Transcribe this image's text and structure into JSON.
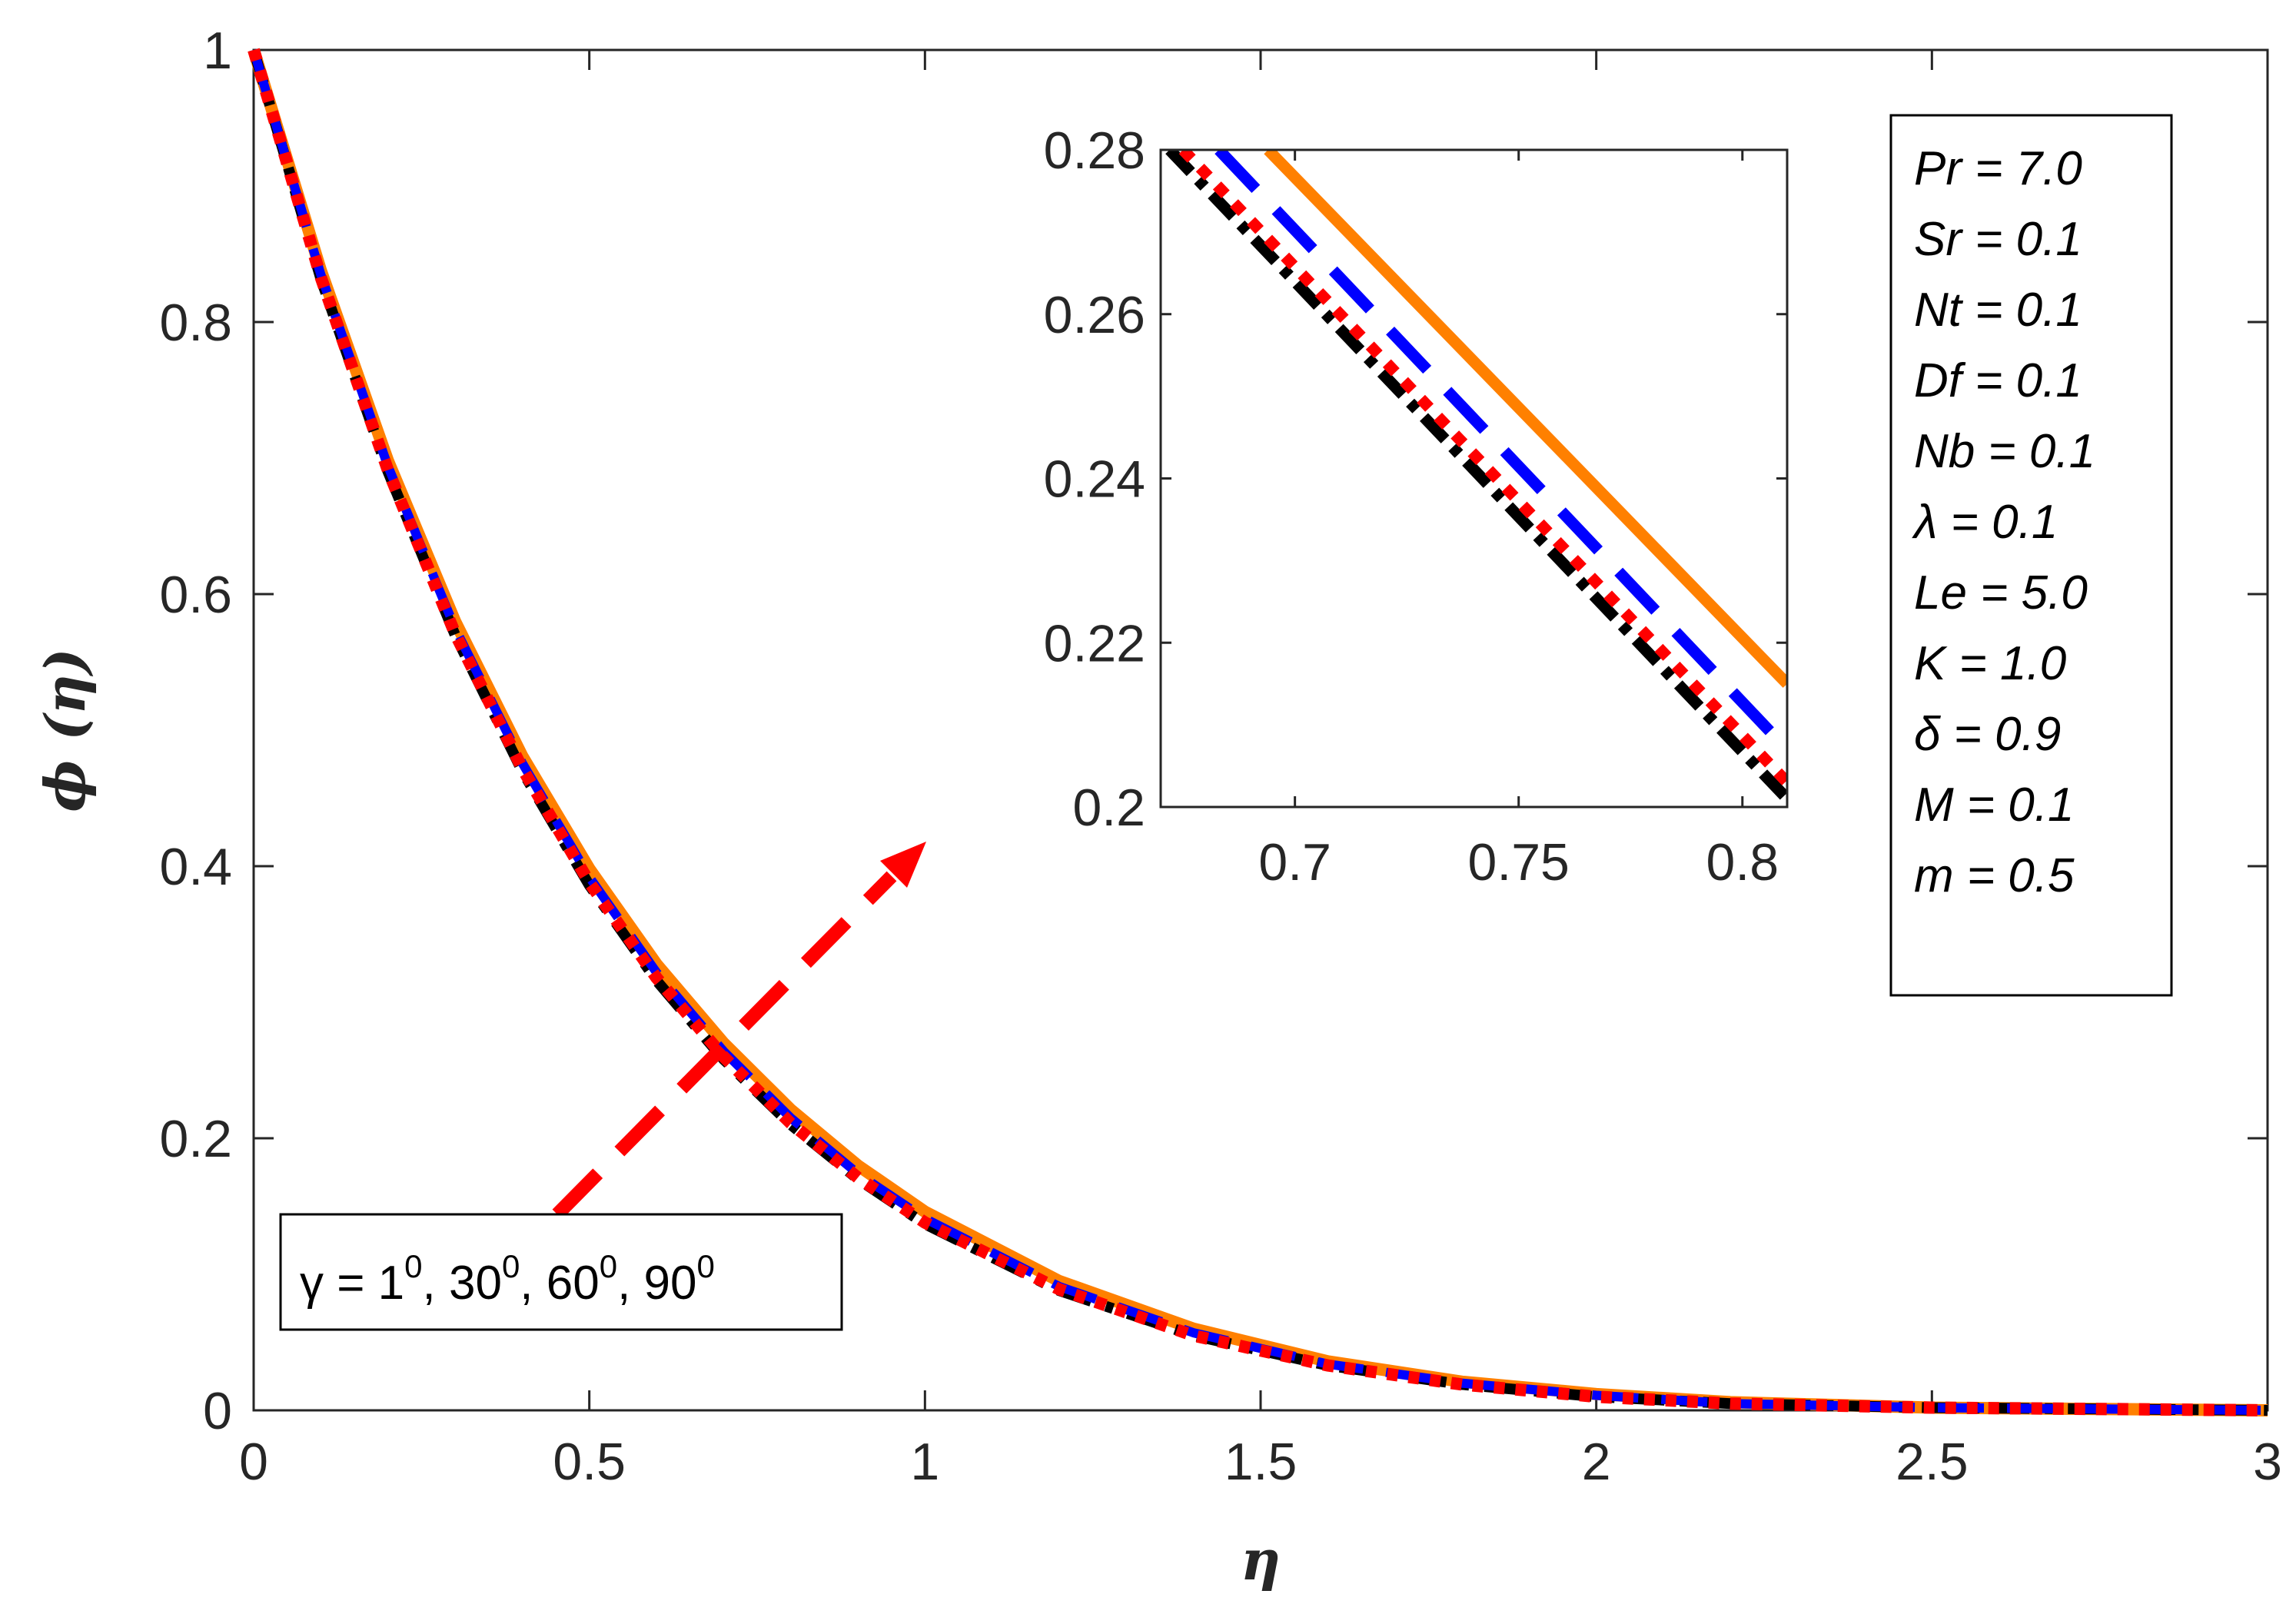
{
  "chart_data": {
    "type": "line",
    "xlabel": "η",
    "ylabel": "ϕ (η)",
    "xlim": [
      0,
      3
    ],
    "ylim": [
      0,
      1
    ],
    "xticks": [
      "0",
      "0.5",
      "1",
      "1.5",
      "2",
      "2.5",
      "3"
    ],
    "yticks": [
      "0",
      "0.2",
      "0.4",
      "0.6",
      "0.8",
      "1"
    ],
    "x": [
      0,
      0.1,
      0.2,
      0.3,
      0.4,
      0.5,
      0.6,
      0.7,
      0.8,
      0.9,
      1.0,
      1.2,
      1.4,
      1.6,
      1.8,
      2.0,
      2.2,
      2.5,
      3.0
    ],
    "series": [
      {
        "name": "γ = 1⁰",
        "color": "#000000",
        "style": "dashdot",
        "values": [
          1.0,
          0.832,
          0.69,
          0.57,
          0.47,
          0.386,
          0.316,
          0.258,
          0.21,
          0.17,
          0.137,
          0.088,
          0.055,
          0.033,
          0.019,
          0.01,
          0.005,
          0.002,
          0.0
        ]
      },
      {
        "name": "γ = 30⁰",
        "color": "#ff0000",
        "style": "dotted",
        "values": [
          1.0,
          0.833,
          0.691,
          0.571,
          0.472,
          0.388,
          0.318,
          0.26,
          0.211,
          0.171,
          0.138,
          0.089,
          0.055,
          0.033,
          0.019,
          0.01,
          0.005,
          0.002,
          0.0
        ]
      },
      {
        "name": "γ = 60⁰",
        "color": "#0000ff",
        "style": "dashed",
        "values": [
          1.0,
          0.835,
          0.694,
          0.575,
          0.476,
          0.392,
          0.322,
          0.264,
          0.215,
          0.174,
          0.141,
          0.091,
          0.057,
          0.034,
          0.02,
          0.011,
          0.005,
          0.002,
          0.0
        ]
      },
      {
        "name": "γ = 90⁰",
        "color": "#ff8000",
        "style": "solid",
        "values": [
          1.0,
          0.838,
          0.698,
          0.58,
          0.481,
          0.398,
          0.328,
          0.27,
          0.221,
          0.18,
          0.146,
          0.095,
          0.06,
          0.036,
          0.021,
          0.012,
          0.006,
          0.002,
          0.0
        ]
      }
    ],
    "inset": {
      "xlim": [
        0.67,
        0.81
      ],
      "ylim": [
        0.2,
        0.28
      ],
      "xticks": [
        "0.7",
        "0.75",
        "0.8"
      ],
      "yticks": [
        "0.2",
        "0.22",
        "0.24",
        "0.26",
        "0.28"
      ],
      "series": [
        {
          "name": "γ = 1⁰",
          "x": [
            0.672,
            0.81
          ],
          "y": [
            0.28,
            0.201
          ]
        },
        {
          "name": "γ = 30⁰",
          "x": [
            0.675,
            0.81
          ],
          "y": [
            0.28,
            0.203
          ]
        },
        {
          "name": "γ = 60⁰",
          "x": [
            0.683,
            0.81
          ],
          "y": [
            0.28,
            0.207
          ]
        },
        {
          "name": "γ = 90⁰",
          "x": [
            0.694,
            0.81
          ],
          "y": [
            0.28,
            0.215
          ]
        }
      ]
    },
    "parameters": [
      "Pr = 7.0",
      "Sr = 0.1",
      "Nt = 0.1",
      "Df = 0.1",
      "Nb = 0.1",
      "λ = 0.1",
      "Le = 5.0",
      "K = 1.0",
      "δ = 0.9",
      "M = 0.1",
      "m = 0.5"
    ],
    "gamma_values": [
      {
        "base": "1",
        "sup": "0"
      },
      {
        "base": "30",
        "sup": "0"
      },
      {
        "base": "60",
        "sup": "0"
      },
      {
        "base": "90",
        "sup": "0"
      }
    ],
    "gamma_prefix": "γ = ",
    "annotation": "dashed red arrow pointing from γ legend toward inset"
  }
}
